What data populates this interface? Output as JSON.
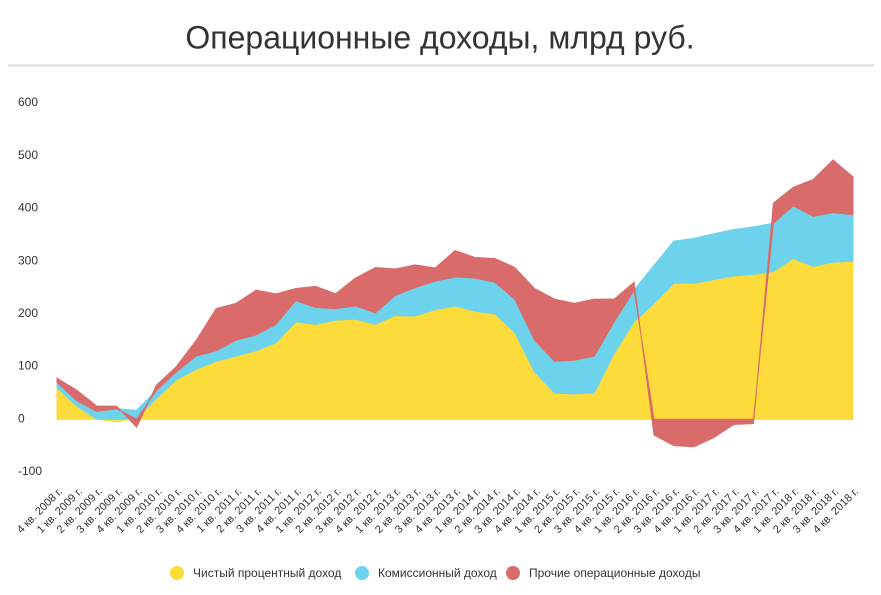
{
  "chart_data": {
    "type": "stacked_area",
    "title": "Операционные доходы, млрд руб.",
    "categories": [
      "4 кв. 2008 г.",
      "1 кв. 2009 г.",
      "2 кв. 2009 г.",
      "3 кв. 2009 г.",
      "4 кв. 2009 г.",
      "1 кв. 2010 г.",
      "2 кв. 2010 г.",
      "3 кв. 2010 г.",
      "4 кв. 2010 г.",
      "1 кв. 2011 г.",
      "2 кв. 2011 г.",
      "3 кв. 2011 г.",
      "4 кв. 2011 г.",
      "1 кв. 2012 г.",
      "2 кв. 2012 г.",
      "3 кв. 2012 г.",
      "4 кв. 2012 г.",
      "1 кв. 2013 г.",
      "2 кв. 2013 г.",
      "3 кв. 2013 г.",
      "4 кв. 2013 г.",
      "1 кв. 2014 г.",
      "2 кв. 2014 г.",
      "3 кв. 2014 г.",
      "4 кв. 2014 г.",
      "1 кв. 2015 г.",
      "2 кв. 2015 г.",
      "3 кв. 2015 г.",
      "4 кв. 2015 г.",
      "1 кв. 2016 г.",
      "2 кв. 2016 г.",
      "3 кв. 2016 г.",
      "4 кв. 2016 г.",
      "1 кв. 2017 г.",
      "2 кв. 2017 г.",
      "3 кв. 2017 г.",
      "4 кв. 2017 г.",
      "1 кв. 2018 г.",
      "2 кв. 2018 г.",
      "3 кв. 2018 г.",
      "4 кв. 2018 г."
    ],
    "series": [
      {
        "name": "Чистый процентный доход",
        "color": "#fddb3a",
        "values": [
          60,
          25,
          0,
          -5,
          2,
          40,
          75,
          95,
          110,
          120,
          130,
          145,
          185,
          180,
          188,
          190,
          180,
          197,
          196,
          208,
          215,
          205,
          200,
          165,
          90,
          50,
          48,
          50,
          125,
          185,
          220,
          258,
          258,
          265,
          272,
          275,
          280,
          305,
          290,
          298,
          300
        ]
      },
      {
        "name": "Комиссионный доход",
        "color": "#6dd3ec",
        "values": [
          10,
          10,
          15,
          20,
          15,
          15,
          15,
          25,
          20,
          30,
          30,
          35,
          40,
          32,
          22,
          25,
          22,
          38,
          54,
          54,
          55,
          63,
          60,
          63,
          60,
          60,
          64,
          70,
          60,
          60,
          72,
          80,
          85,
          87,
          88,
          90,
          92,
          100,
          95,
          94,
          88
        ]
      },
      {
        "name": "Прочие операционные доходы",
        "color": "#d96b6b",
        "values": [
          8,
          20,
          10,
          5,
          -15,
          10,
          10,
          30,
          80,
          70,
          85,
          58,
          23,
          40,
          28,
          53,
          86,
          50,
          43,
          25,
          50,
          39,
          45,
          60,
          98,
          118,
          108,
          108,
          43,
          15,
          -30,
          -50,
          -52,
          -35,
          -10,
          -8,
          38,
          35,
          70,
          100,
          72
        ]
      }
    ],
    "ylim": [
      -100,
      600
    ],
    "yticks": [
      -100,
      0,
      100,
      200,
      300,
      400,
      500,
      600
    ],
    "grid": false
  }
}
